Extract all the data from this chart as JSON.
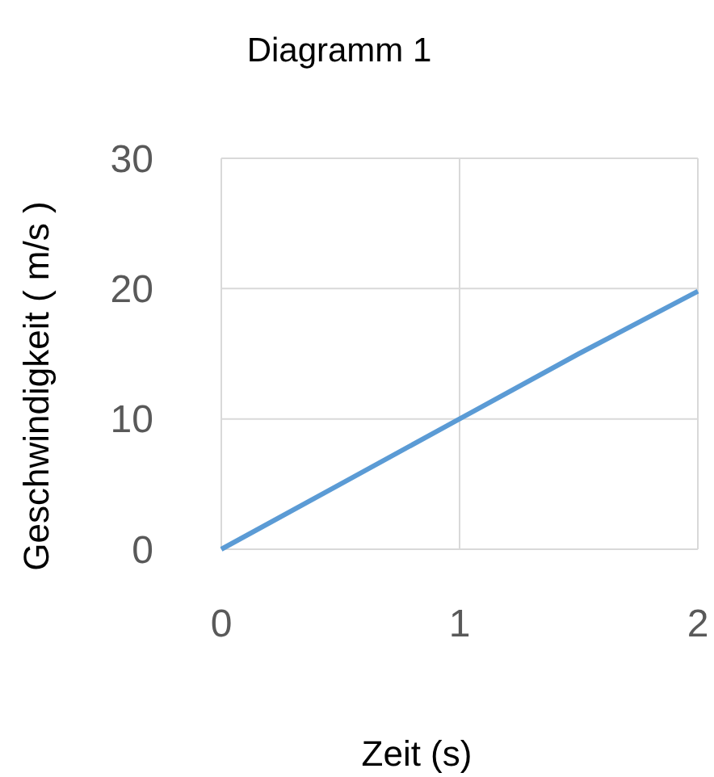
{
  "chart_data": {
    "type": "line",
    "title": "Diagramm 1",
    "xlabel": "Zeit (s)",
    "ylabel": "Geschwindigkeit  ( m/s )",
    "x": [
      0,
      0.5,
      1,
      1.5,
      2
    ],
    "series": [
      {
        "color": "#5b9bd5",
        "values": [
          0,
          5,
          10,
          15,
          19.8
        ]
      }
    ],
    "xlim": [
      0,
      2
    ],
    "xticks": [
      0,
      1,
      2
    ],
    "ylim": [
      0,
      30
    ],
    "yticks": [
      0,
      10,
      20,
      30
    ],
    "grid": true,
    "line_style": "solid"
  }
}
